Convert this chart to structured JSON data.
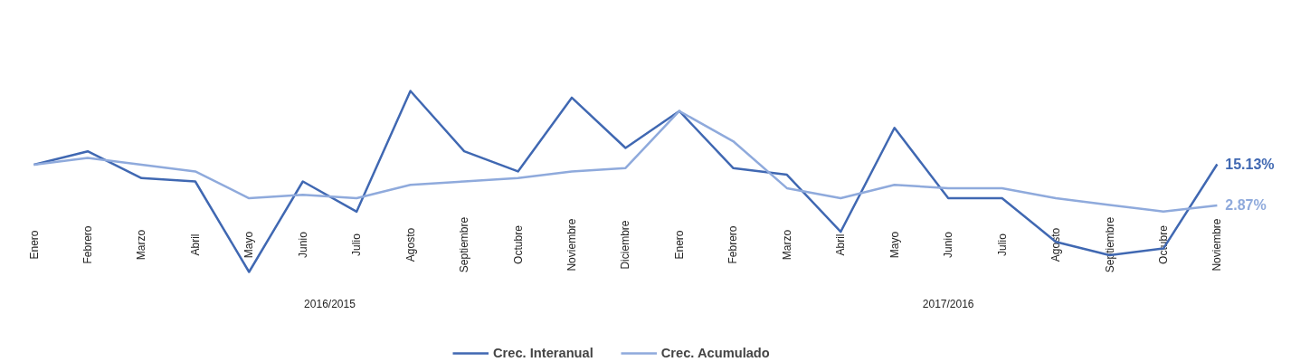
{
  "chart_data": {
    "type": "line",
    "categories": [
      "Enero",
      "Febrero",
      "Marzo",
      "Abril",
      "Mayo",
      "Junio",
      "Julio",
      "Agosto",
      "Septiembre",
      "Octubre",
      "Noviembre",
      "Diciembre",
      "Enero",
      "Febrero",
      "Marzo",
      "Abril",
      "Mayo",
      "Junio",
      "Julio",
      "Agosto",
      "Septiembre",
      "Octubre",
      "Noviembre"
    ],
    "series": [
      {
        "name": "Crec. Interanual",
        "color": "#4068b2",
        "values": [
          15,
          19,
          11,
          10,
          -17,
          10,
          1,
          37,
          19,
          13,
          35,
          20,
          31,
          14,
          12,
          -5,
          26,
          5,
          5,
          -8,
          -12,
          -10,
          15.13
        ],
        "value_labels": [
          null,
          null,
          null,
          null,
          null,
          null,
          null,
          null,
          null,
          null,
          null,
          null,
          null,
          null,
          null,
          null,
          null,
          null,
          null,
          null,
          null,
          null,
          "15.13%"
        ]
      },
      {
        "name": "Crec. Acumulado",
        "color": "#8faadc",
        "values": [
          15,
          17,
          15,
          13,
          5,
          6,
          5,
          9,
          10,
          11,
          13,
          14,
          31,
          22,
          8,
          5,
          9,
          8,
          8,
          5,
          3,
          1,
          2.87
        ],
        "value_labels": [
          null,
          null,
          null,
          null,
          null,
          null,
          null,
          null,
          null,
          null,
          null,
          null,
          null,
          null,
          null,
          null,
          null,
          null,
          null,
          null,
          null,
          null,
          "2.87%"
        ]
      }
    ],
    "ylim": [
      -44,
      64
    ],
    "annotations": [
      "2016/2015",
      "2017/2016"
    ],
    "legend": "bottom",
    "grid": false,
    "marker": "none",
    "line_style": "solid"
  }
}
